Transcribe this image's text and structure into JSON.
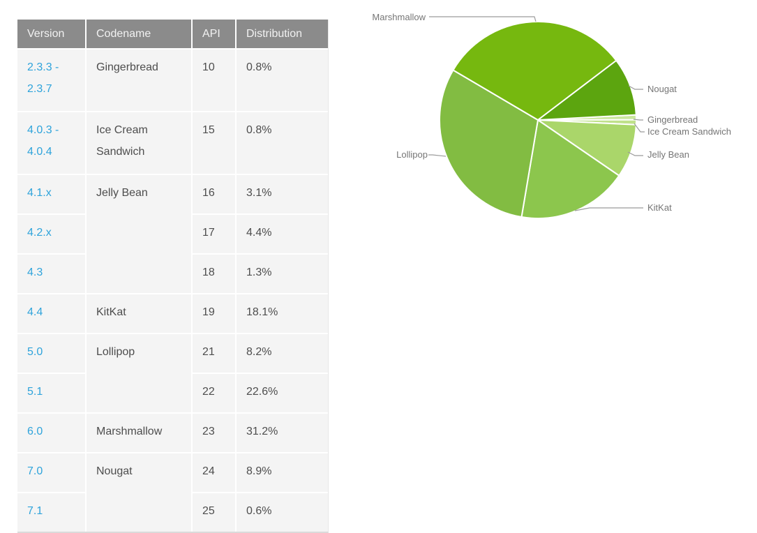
{
  "table": {
    "headers": [
      "Version",
      "Codename",
      "API",
      "Distribution"
    ],
    "rows": [
      {
        "version_lines": [
          "2.3.3 -",
          "2.3.7"
        ],
        "codename": "Gingerbread",
        "codename_lines": [
          "Gingerbread"
        ],
        "codename_rowspan": 1,
        "api": "10",
        "distribution": "0.8%"
      },
      {
        "version_lines": [
          "4.0.3 -",
          "4.0.4"
        ],
        "codename": "Ice Cream Sandwich",
        "codename_lines": [
          "Ice Cream",
          "Sandwich"
        ],
        "codename_rowspan": 1,
        "api": "15",
        "distribution": "0.8%"
      },
      {
        "version_lines": [
          "4.1.x"
        ],
        "codename": "Jelly Bean",
        "codename_lines": [
          "Jelly Bean"
        ],
        "codename_rowspan": 3,
        "api": "16",
        "distribution": "3.1%"
      },
      {
        "version_lines": [
          "4.2.x"
        ],
        "api": "17",
        "distribution": "4.4%"
      },
      {
        "version_lines": [
          "4.3"
        ],
        "api": "18",
        "distribution": "1.3%"
      },
      {
        "version_lines": [
          "4.4"
        ],
        "codename": "KitKat",
        "codename_lines": [
          "KitKat"
        ],
        "codename_rowspan": 1,
        "api": "19",
        "distribution": "18.1%"
      },
      {
        "version_lines": [
          "5.0"
        ],
        "codename": "Lollipop",
        "codename_lines": [
          "Lollipop"
        ],
        "codename_rowspan": 2,
        "api": "21",
        "distribution": "8.2%"
      },
      {
        "version_lines": [
          "5.1"
        ],
        "api": "22",
        "distribution": "22.6%"
      },
      {
        "version_lines": [
          "6.0"
        ],
        "codename": "Marshmallow",
        "codename_lines": [
          "Marshmallow"
        ],
        "codename_rowspan": 1,
        "api": "23",
        "distribution": "31.2%"
      },
      {
        "version_lines": [
          "7.0"
        ],
        "codename": "Nougat",
        "codename_lines": [
          "Nougat"
        ],
        "codename_rowspan": 2,
        "api": "24",
        "distribution": "8.9%"
      },
      {
        "version_lines": [
          "7.1"
        ],
        "api": "25",
        "distribution": "0.6%"
      }
    ]
  },
  "chart_data": {
    "type": "pie",
    "title": "",
    "unit": "percent",
    "direction": "clockwise",
    "start_angle_deg": -3,
    "legend_position": "callout-labels",
    "segments": [
      {
        "label": "Gingerbread",
        "value": 0.8,
        "color": "#cbe79d"
      },
      {
        "label": "Ice Cream Sandwich",
        "value": 0.8,
        "color": "#bfe18a"
      },
      {
        "label": "Jelly Bean",
        "value": 8.8,
        "color": "#aad66a"
      },
      {
        "label": "KitKat",
        "value": 18.1,
        "color": "#8cc64d"
      },
      {
        "label": "Lollipop",
        "value": 30.8,
        "color": "#82bc42"
      },
      {
        "label": "Marshmallow",
        "value": 31.2,
        "color": "#76b80f"
      },
      {
        "label": "Nougat",
        "value": 9.5,
        "color": "#5ca50f"
      }
    ]
  },
  "colors": {
    "header_bg": "#8b8b8b",
    "header_text": "#f2f2f2",
    "row_bg": "#f4f4f4",
    "body_text": "#4d4d4d",
    "version_link": "#2ea3db",
    "cell_border": "#ffffff",
    "callout_text": "#757575",
    "leader_line": "#9b9b9b"
  }
}
